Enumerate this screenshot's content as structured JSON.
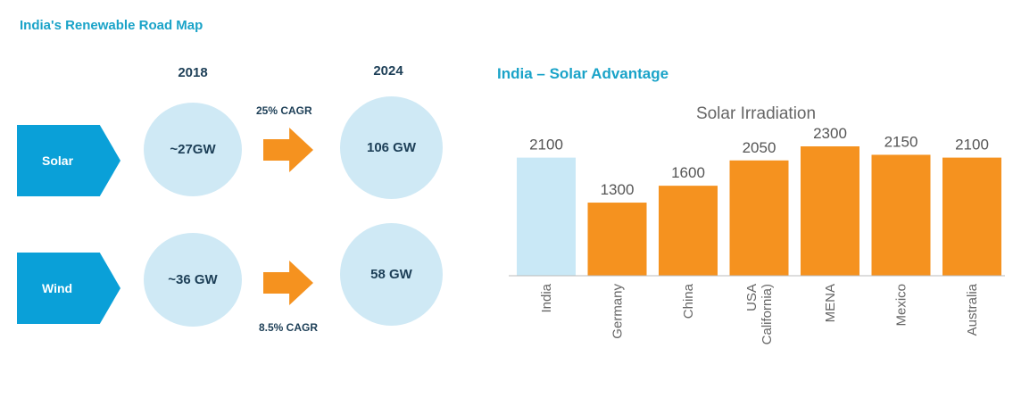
{
  "roadmap": {
    "title": "India's Renewable Road Map",
    "year_start": "2018",
    "year_end": "2024",
    "rows": [
      {
        "label": "Solar",
        "start": "~27GW",
        "end": "106 GW",
        "cagr": "25% CAGR"
      },
      {
        "label": "Wind",
        "start": "~36 GW",
        "end": "58 GW",
        "cagr": "8.5% CAGR"
      }
    ]
  },
  "colors": {
    "accent": "#0aa0d8",
    "bubble": "#cfe9f5",
    "orange": "#f5921f",
    "highlight": "#c9e8f6",
    "dark": "#1d3f57"
  },
  "section_title": "India – Solar Advantage",
  "chart_data": {
    "type": "bar",
    "title": "Solar Irradiation",
    "categories": [
      "India",
      "Germany",
      "China",
      "USA California)",
      "MENA",
      "Mexico",
      "Australia"
    ],
    "category_lines": [
      [
        "India"
      ],
      [
        "Germany"
      ],
      [
        "China"
      ],
      [
        "USA",
        "California)"
      ],
      [
        "MENA"
      ],
      [
        "Mexico"
      ],
      [
        "Australia"
      ]
    ],
    "values": [
      2100,
      1300,
      1600,
      2050,
      2300,
      2150,
      2100
    ],
    "highlight_index": 0,
    "ylim": [
      0,
      2300
    ],
    "xlabel": "",
    "ylabel": ""
  }
}
